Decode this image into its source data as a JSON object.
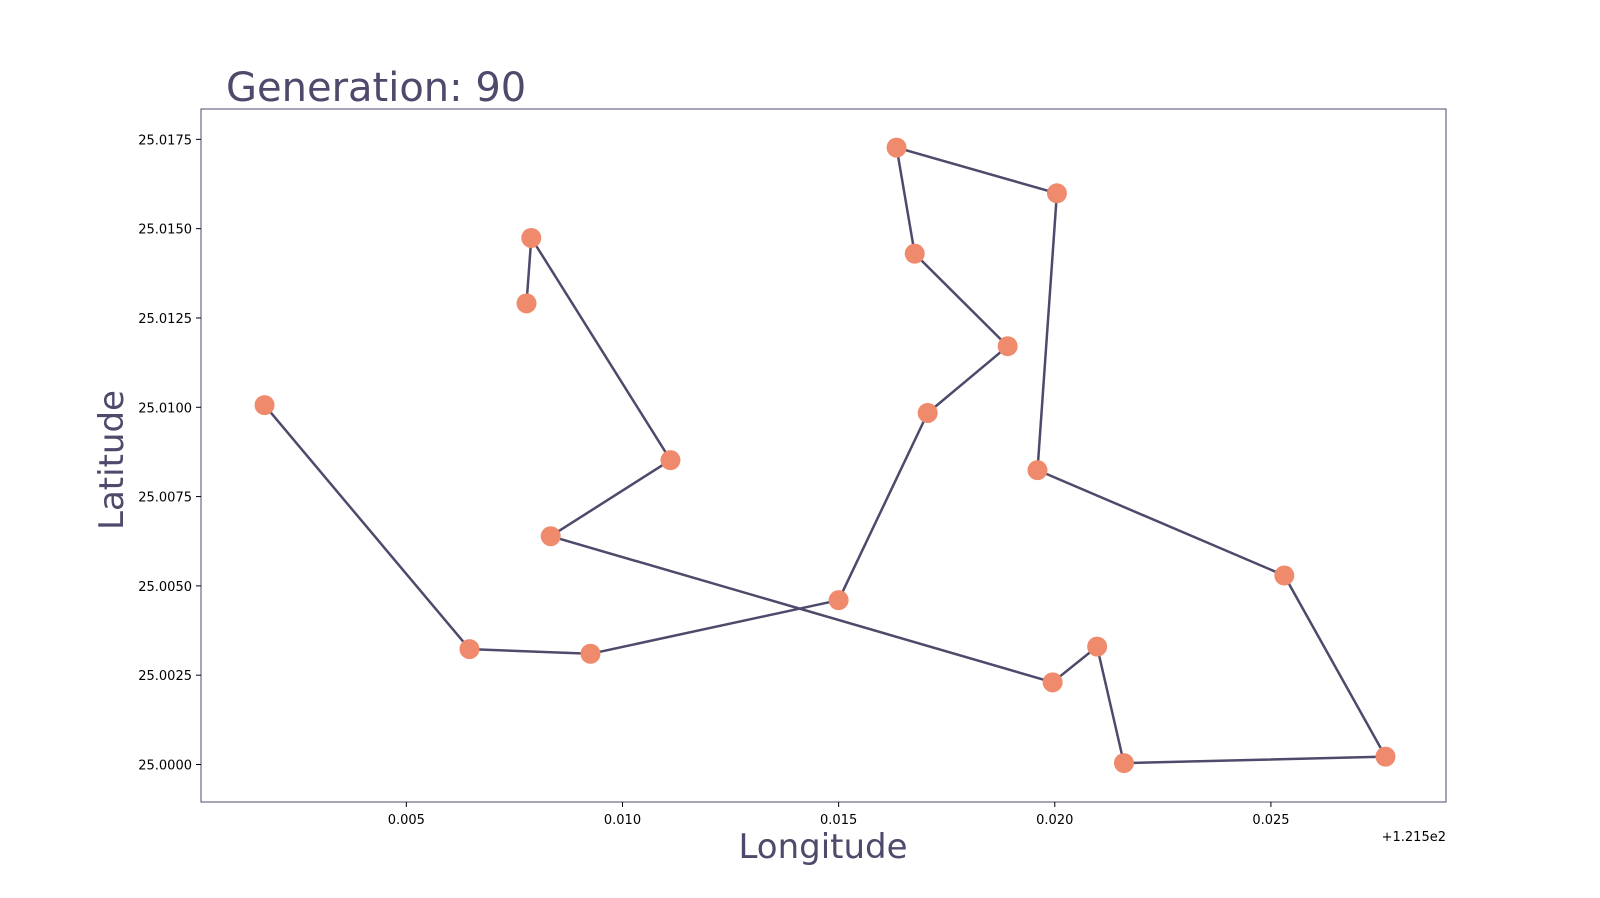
{
  "chart_data": {
    "type": "line",
    "title": "Generation: 90",
    "xlabel": "Longitude",
    "ylabel": "Latitude",
    "x_offset_label": "+1.215e2",
    "xlim": [
      121.50025,
      121.52905
    ],
    "ylim": [
      24.99895,
      25.01835
    ],
    "x_ticks": [
      {
        "value": 121.505,
        "label": "0.005"
      },
      {
        "value": 121.51,
        "label": "0.010"
      },
      {
        "value": 121.515,
        "label": "0.015"
      },
      {
        "value": 121.52,
        "label": "0.020"
      },
      {
        "value": 121.525,
        "label": "0.025"
      }
    ],
    "y_ticks": [
      {
        "value": 25.0,
        "label": "25.0000"
      },
      {
        "value": 25.0025,
        "label": "25.0025"
      },
      {
        "value": 25.005,
        "label": "25.0050"
      },
      {
        "value": 25.0075,
        "label": "25.0075"
      },
      {
        "value": 25.01,
        "label": "25.0100"
      },
      {
        "value": 25.0125,
        "label": "25.0125"
      },
      {
        "value": 25.015,
        "label": "25.0150"
      },
      {
        "value": 25.0175,
        "label": "25.0175"
      }
    ],
    "grid": false,
    "series": [
      {
        "x": [
          121.50778,
          121.50789,
          121.51111,
          121.50834,
          121.51995,
          121.52098,
          121.5216,
          121.52765,
          121.52531,
          121.5196,
          121.52005,
          121.51634,
          121.51676,
          121.51891,
          121.51706,
          121.515,
          121.50926,
          121.50646,
          121.50172
        ],
        "y": [
          25.01291,
          25.01474,
          25.00852,
          25.00639,
          25.0023,
          25.0033,
          25.00004,
          25.00022,
          25.00529,
          25.00824,
          25.01599,
          25.01727,
          25.0143,
          25.01171,
          25.00984,
          25.0046,
          25.0031,
          25.00323,
          25.01006
        ]
      }
    ],
    "colors": {
      "route": "#4d4a6b",
      "city": "#f08a6c",
      "text": "#4d4a6b",
      "frame": "#4d4a6b"
    }
  }
}
